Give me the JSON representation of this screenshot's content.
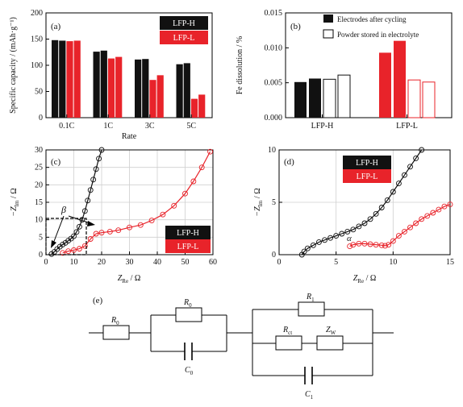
{
  "colors": {
    "black": "#111111",
    "red": "#e8232a",
    "grid": "#cfcfcf",
    "axis": "#000000"
  },
  "chart_data": [
    {
      "panel": "(a)",
      "type": "bar",
      "ylabel": "Specific capacity / (mAh·g⁻¹)",
      "xlabel": "Rate",
      "ylim": [
        0,
        200
      ],
      "yticks": [
        0,
        50,
        100,
        150,
        200
      ],
      "categories": [
        "0.1C",
        "1C",
        "3C",
        "5C"
      ],
      "series": [
        {
          "name": "LFP-H",
          "color": "#111111",
          "values": [
            [
              148,
              147
            ],
            [
              126,
              128
            ],
            [
              111,
              112
            ],
            [
              102,
              104
            ]
          ]
        },
        {
          "name": "LFP-L",
          "color": "#e8232a",
          "values": [
            [
              146,
              147
            ],
            [
              113,
              116
            ],
            [
              72,
              81
            ],
            [
              36,
              44
            ]
          ]
        }
      ],
      "legend": [
        "LFP-H",
        "LFP-L"
      ],
      "legend_position": "top-right"
    },
    {
      "panel": "(b)",
      "type": "bar",
      "ylabel": "Fe dissolution / %",
      "ylim": [
        0,
        0.015
      ],
      "yticks": [
        "0.000",
        "0.005",
        "0.010",
        "0.015"
      ],
      "categories": [
        "LFP-H",
        "LFP-L"
      ],
      "series": [
        {
          "name": "Electrodes after cycling",
          "fill": "solid",
          "values": [
            [
              0.0051,
              0.0056
            ],
            [
              0.0093,
              0.011
            ]
          ]
        },
        {
          "name": "Powder stored in electrolyte",
          "fill": "hollow",
          "values": [
            [
              0.0055,
              0.0061
            ],
            [
              0.0054,
              0.0051
            ]
          ]
        }
      ],
      "legend_position": "top-right"
    },
    {
      "panel": "(c)",
      "type": "scatter",
      "xlabel_main": "Z",
      "xlabel_sub": "Re",
      "xlabel_unit": " / Ω",
      "ylabel_main": "−Z",
      "ylabel_sub": "Im",
      "ylabel_unit": " / Ω",
      "xlim": [
        0,
        60
      ],
      "ylim": [
        0,
        30
      ],
      "xticks": [
        0,
        10,
        20,
        30,
        40,
        50,
        60
      ],
      "yticks": [
        0,
        5,
        10,
        15,
        20,
        25,
        30
      ],
      "grid": true,
      "annotation": "β",
      "series": [
        {
          "name": "LFP-H",
          "x": [
            2,
            3,
            4,
            5,
            6,
            7,
            8,
            9,
            10,
            11,
            12,
            13,
            14,
            15,
            16,
            17,
            18,
            19,
            20
          ],
          "y": [
            0.2,
            0.8,
            1.6,
            2.3,
            2.9,
            3.4,
            4.0,
            4.6,
            5.3,
            6.5,
            8.0,
            10.0,
            12.5,
            15.5,
            18.5,
            21.5,
            24.5,
            27.5,
            30.0
          ]
        },
        {
          "name": "LFP-L",
          "x": [
            6,
            8,
            10,
            12,
            14,
            16,
            18,
            20,
            23,
            26,
            30,
            34,
            38,
            42,
            46,
            50,
            53,
            56,
            59
          ],
          "y": [
            0.5,
            1.0,
            1.3,
            1.7,
            2.5,
            4.5,
            6.0,
            6.3,
            6.6,
            7.0,
            7.8,
            8.5,
            9.8,
            11.5,
            14,
            17.5,
            21,
            25,
            29.5
          ]
        }
      ],
      "legend": [
        "LFP-H",
        "LFP-L"
      ],
      "legend_position": "bottom-right"
    },
    {
      "panel": "(d)",
      "type": "scatter",
      "xlabel_main": "Z",
      "xlabel_sub": "Re",
      "xlabel_unit": " / Ω",
      "ylabel_main": "−Z",
      "ylabel_sub": "Im",
      "ylabel_unit": " / Ω",
      "xlim": [
        0,
        15
      ],
      "ylim": [
        0,
        10
      ],
      "xticks": [
        0,
        5,
        10,
        15
      ],
      "yticks": [
        0,
        5,
        10
      ],
      "grid": true,
      "annotation": "α",
      "series": [
        {
          "name": "LFP-H",
          "x": [
            2.0,
            2.2,
            2.5,
            3.0,
            3.5,
            4.0,
            4.5,
            5.0,
            5.5,
            6.0,
            6.5,
            7.0,
            7.5,
            8.0,
            8.5,
            9.0,
            9.5,
            10.0,
            10.5,
            11.0,
            11.5,
            12.0,
            12.5
          ],
          "y": [
            0.0,
            0.3,
            0.6,
            0.9,
            1.2,
            1.4,
            1.6,
            1.8,
            2.0,
            2.2,
            2.4,
            2.7,
            3.0,
            3.4,
            3.9,
            4.5,
            5.2,
            6.0,
            6.8,
            7.6,
            8.4,
            9.2,
            10.0
          ]
        },
        {
          "name": "LFP-L",
          "x": [
            6.2,
            6.5,
            7.0,
            7.5,
            8.0,
            8.5,
            9.0,
            9.3,
            9.6,
            10.0,
            10.5,
            11.0,
            11.5,
            12.0,
            12.5,
            13.0,
            13.5,
            14.0,
            14.5,
            15.0
          ],
          "y": [
            0.8,
            0.95,
            1.05,
            1.05,
            1.0,
            0.95,
            0.9,
            0.85,
            0.95,
            1.3,
            1.8,
            2.2,
            2.6,
            3.0,
            3.4,
            3.7,
            4.0,
            4.3,
            4.6,
            4.8
          ]
        }
      ],
      "legend": [
        "LFP-H",
        "LFP-L"
      ],
      "legend_position": "top-right"
    }
  ],
  "circuit": {
    "panel": "(e)",
    "r0": "R",
    "r0_sub": "0",
    "c0": "C",
    "c0_sub": "0",
    "r1": "R",
    "r1_sub": "1",
    "rct": "R",
    "rct_sub": "ct",
    "zw": "Z",
    "zw_sub": "W",
    "c1": "C",
    "c1_sub": "1"
  }
}
